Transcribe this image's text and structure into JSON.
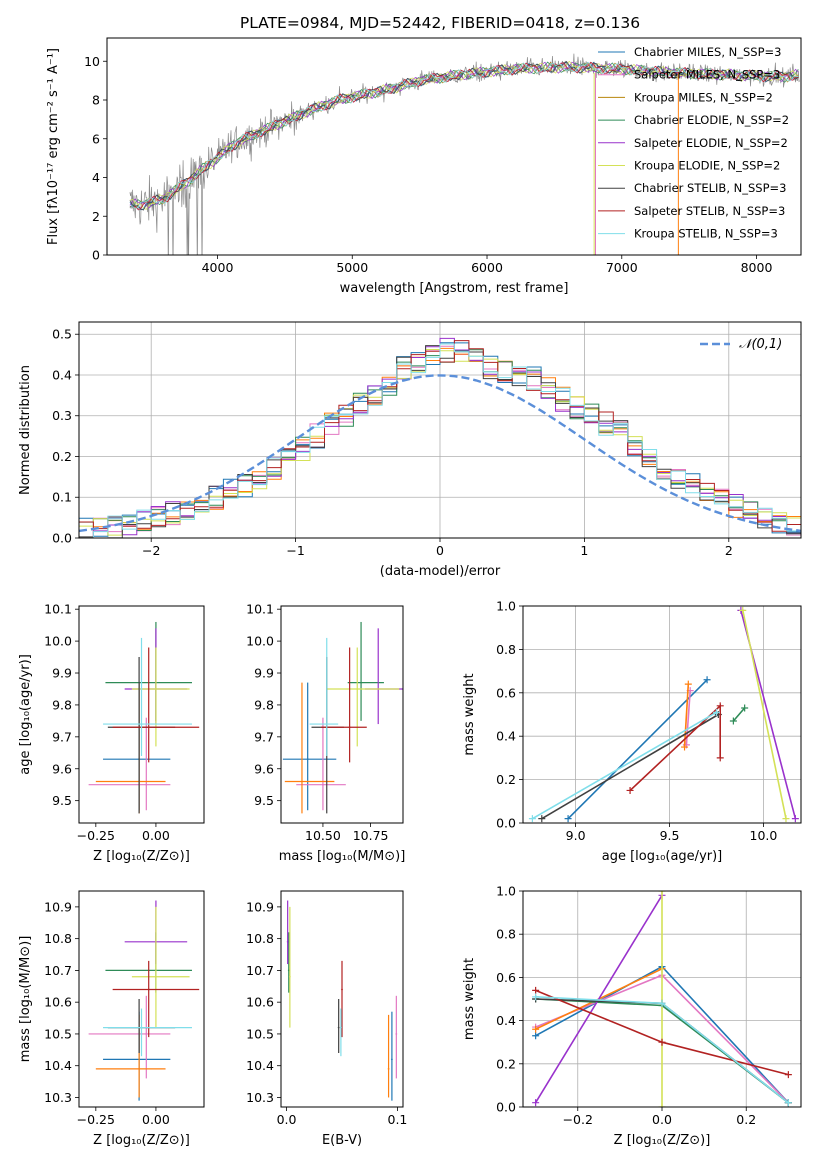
{
  "figure": {
    "title": "PLATE=0984, MJD=52442, FIBERID=0418, z=0.136"
  },
  "chart_data": [
    {
      "id": "spectrum",
      "type": "line",
      "xlabel": "wavelength [Angstrom, rest frame]",
      "ylabel": "Flux [fλ10⁻¹⁷ erg cm⁻² s⁻¹ A⁻¹]",
      "xlim": [
        3180,
        8330
      ],
      "ylim": [
        0,
        11.2
      ],
      "xticks": [
        4000,
        5000,
        6000,
        7000,
        8000
      ],
      "yticks": [
        0,
        2,
        4,
        6,
        8,
        10
      ],
      "grid": false,
      "legend_position": "top-right",
      "legend": [
        {
          "label": "Chabrier MILES, N_SSP=3",
          "color": "#1f77b4"
        },
        {
          "label": "Salpeter MILES, N_SSP=3",
          "color": "#e377c2"
        },
        {
          "label": "Kroupa MILES, N_SSP=2",
          "color": "#b8860b"
        },
        {
          "label": "Chabrier ELODIE, N_SSP=2",
          "color": "#2e8b57"
        },
        {
          "label": "Salpeter ELODIE, N_SSP=2",
          "color": "#9932cc"
        },
        {
          "label": "Kroupa ELODIE, N_SSP=2",
          "color": "#d4e157"
        },
        {
          "label": "Chabrier STELIB, N_SSP=3",
          "color": "#404040"
        },
        {
          "label": "Salpeter STELIB, N_SSP=3",
          "color": "#b22222"
        },
        {
          "label": "Kroupa STELIB, N_SSP=3",
          "color": "#80deea"
        }
      ],
      "continuum": {
        "x": [
          3350,
          3450,
          3600,
          3700,
          3800,
          3900,
          4000,
          4100,
          4200,
          4300,
          4500,
          4700,
          4900,
          5100,
          5300,
          5500,
          5800,
          6200,
          6600,
          7000,
          7400,
          7800,
          8200,
          8300
        ],
        "y": [
          2.6,
          2.6,
          2.9,
          3.4,
          3.9,
          4.5,
          5.0,
          5.6,
          6.0,
          6.3,
          6.9,
          7.5,
          8.0,
          8.3,
          8.6,
          9.0,
          9.3,
          9.6,
          9.7,
          9.6,
          9.4,
          9.3,
          9.2,
          9.3
        ]
      }
    },
    {
      "id": "residuals",
      "type": "line",
      "xlabel": "(data-model)/error",
      "ylabel": "Normed distribution",
      "xlim": [
        -2.5,
        2.5
      ],
      "ylim": [
        0,
        0.53
      ],
      "xticks": [
        -2,
        -1,
        0,
        1,
        2
      ],
      "yticks": [
        0.0,
        0.1,
        0.2,
        0.3,
        0.4,
        0.5
      ],
      "grid": true,
      "legend_position": "top-right",
      "reference_curve": {
        "label": "𝒩(0,1)",
        "color": "#5b8fd9"
      },
      "histogram_bin_width": 0.1,
      "histogram_envelope": [
        0.02,
        0.025,
        0.03,
        0.035,
        0.04,
        0.05,
        0.06,
        0.065,
        0.08,
        0.1,
        0.12,
        0.13,
        0.15,
        0.17,
        0.2,
        0.22,
        0.25,
        0.28,
        0.3,
        0.33,
        0.35,
        0.38,
        0.42,
        0.43,
        0.45,
        0.46,
        0.46,
        0.45,
        0.42,
        0.41,
        0.4,
        0.39,
        0.37,
        0.34,
        0.32,
        0.3,
        0.28,
        0.26,
        0.23,
        0.2,
        0.17,
        0.15,
        0.13,
        0.11,
        0.09,
        0.08,
        0.06,
        0.05,
        0.04,
        0.03
      ]
    },
    {
      "id": "age-vs-Z",
      "type": "scatter",
      "xlabel": "Z [log₁₀(Z/Z⊙)]",
      "ylabel": "age  [log₁₀(age/yr)]",
      "xlim": [
        -0.32,
        0.2
      ],
      "ylim": [
        9.43,
        10.11
      ],
      "xticks": [
        -0.25,
        0.0
      ],
      "yticks": [
        9.5,
        9.6,
        9.7,
        9.8,
        9.9,
        10.0,
        10.1
      ]
    },
    {
      "id": "age-vs-mass",
      "type": "scatter",
      "xlabel": "mass [log₁₀(M/M⊙)]",
      "xlim": [
        10.28,
        10.92
      ],
      "ylim": [
        9.43,
        10.11
      ],
      "xticks": [
        10.5,
        10.75
      ],
      "yticks": [
        9.5,
        9.6,
        9.7,
        9.8,
        9.9,
        10.0,
        10.1
      ]
    },
    {
      "id": "weight-vs-age",
      "type": "line",
      "xlabel": "age  [log₁₀(age/yr)]",
      "ylabel": "mass weight",
      "xlim": [
        8.72,
        10.2
      ],
      "ylim": [
        0,
        1
      ],
      "xticks": [
        9.0,
        9.5,
        10.0
      ],
      "yticks": [
        0.0,
        0.2,
        0.4,
        0.6,
        0.8,
        1.0
      ],
      "grid": true,
      "series": [
        {
          "color": "#1f77b4",
          "x": [
            8.96,
            9.7
          ],
          "y": [
            0.02,
            0.66
          ]
        },
        {
          "color": "#e377c2",
          "x": [
            9.59,
            9.61
          ],
          "y": [
            0.36,
            0.61
          ]
        },
        {
          "color": "#ff7f0e",
          "x": [
            9.58,
            9.6
          ],
          "y": [
            0.35,
            0.64
          ]
        },
        {
          "color": "#2e8b57",
          "x": [
            9.84,
            9.9
          ],
          "y": [
            0.47,
            0.53
          ]
        },
        {
          "color": "#9932cc",
          "x": [
            9.88,
            10.17
          ],
          "y": [
            0.98,
            0.02
          ]
        },
        {
          "color": "#d4e157",
          "x": [
            9.89,
            10.12
          ],
          "y": [
            0.98,
            0.02
          ]
        },
        {
          "color": "#404040",
          "x": [
            8.82,
            9.76
          ],
          "y": [
            0.02,
            0.5
          ]
        },
        {
          "color": "#b22222",
          "x": [
            9.29,
            9.77,
            9.77
          ],
          "y": [
            0.15,
            0.54,
            0.3
          ]
        },
        {
          "color": "#80deea",
          "x": [
            8.77,
            9.75
          ],
          "y": [
            0.02,
            0.51
          ]
        }
      ]
    },
    {
      "id": "mass-vs-Z",
      "type": "scatter",
      "xlabel": "Z [log₁₀(Z/Z⊙)]",
      "ylabel": "mass [log₁₀(M/M⊙)]",
      "xlim": [
        -0.32,
        0.2
      ],
      "ylim": [
        10.27,
        10.95
      ],
      "xticks": [
        -0.25,
        0.0
      ],
      "yticks": [
        10.3,
        10.4,
        10.5,
        10.6,
        10.7,
        10.8,
        10.9
      ]
    },
    {
      "id": "mass-vs-EBV",
      "type": "scatter",
      "xlabel": "E(B-V)",
      "xlim": [
        -0.005,
        0.105
      ],
      "ylim": [
        10.27,
        10.95
      ],
      "xticks": [
        0.0,
        0.1
      ],
      "yticks": [
        10.3,
        10.4,
        10.5,
        10.6,
        10.7,
        10.8,
        10.9
      ]
    },
    {
      "id": "weight-vs-Z",
      "type": "line",
      "xlabel": "Z [log₁₀(Z/Z⊙)]",
      "ylabel": "mass weight",
      "xlim": [
        -0.33,
        0.33
      ],
      "ylim": [
        0,
        1
      ],
      "xticks": [
        -0.2,
        0.0,
        0.2
      ],
      "yticks": [
        0.0,
        0.2,
        0.4,
        0.6,
        0.8,
        1.0
      ],
      "grid": true,
      "series": [
        {
          "color": "#1f77b4",
          "x": [
            -0.3,
            0.0,
            0.3
          ],
          "y": [
            0.33,
            0.65,
            0.02
          ]
        },
        {
          "color": "#e377c2",
          "x": [
            -0.3,
            0.0,
            0.3
          ],
          "y": [
            0.37,
            0.61,
            0.02
          ]
        },
        {
          "color": "#ff7f0e",
          "x": [
            -0.3,
            0.0
          ],
          "y": [
            0.36,
            0.64
          ]
        },
        {
          "color": "#2e8b57",
          "x": [
            -0.3,
            0.0,
            0.3
          ],
          "y": [
            0.5,
            0.47,
            0.02
          ]
        },
        {
          "color": "#9932cc",
          "x": [
            -0.3,
            0.0
          ],
          "y": [
            0.02,
            0.98
          ]
        },
        {
          "color": "#d4e157",
          "x": [
            0.0,
            0.0
          ],
          "y": [
            0.0,
            1.0
          ]
        },
        {
          "color": "#404040",
          "x": [
            -0.3,
            0.0,
            0.3
          ],
          "y": [
            0.5,
            0.48,
            0.02
          ]
        },
        {
          "color": "#b22222",
          "x": [
            -0.3,
            0.0,
            0.3
          ],
          "y": [
            0.54,
            0.3,
            0.15
          ]
        },
        {
          "color": "#80deea",
          "x": [
            -0.3,
            0.0,
            0.3
          ],
          "y": [
            0.51,
            0.48,
            0.02
          ]
        }
      ]
    }
  ],
  "fit_results": [
    {
      "color": "#1f77b4",
      "Z": -0.07,
      "Z_lo": -0.22,
      "Z_hi": 0.06,
      "age": 9.63,
      "age_lo": 9.47,
      "age_hi": 9.87,
      "mass": 10.42,
      "mass_lo": 10.29,
      "mass_hi": 10.57,
      "ebv": 0.095
    },
    {
      "color": "#e377c2",
      "Z": -0.04,
      "Z_lo": -0.28,
      "Z_hi": 0.06,
      "age": 9.55,
      "age_lo": 9.47,
      "age_hi": 9.76,
      "mass": 10.5,
      "mass_lo": 10.36,
      "mass_hi": 10.62,
      "ebv": 0.099
    },
    {
      "color": "#ff7f0e",
      "Z": -0.07,
      "Z_lo": -0.25,
      "Z_hi": 0.04,
      "age": 9.56,
      "age_lo": 9.46,
      "age_hi": 9.87,
      "mass": 10.39,
      "mass_lo": 10.3,
      "mass_hi": 10.56,
      "ebv": 0.092
    },
    {
      "color": "#2e8b57",
      "Z": 0.0,
      "Z_lo": -0.21,
      "Z_hi": 0.15,
      "age": 9.87,
      "age_lo": 9.75,
      "age_hi": 10.06,
      "mass": 10.7,
      "mass_lo": 10.63,
      "mass_hi": 10.82,
      "ebv": 0.002
    },
    {
      "color": "#9932cc",
      "Z": 0.0,
      "Z_lo": -0.13,
      "Z_hi": 0.13,
      "age": 9.85,
      "age_lo": 9.74,
      "age_hi": 10.04,
      "mass": 10.79,
      "mass_lo": 10.72,
      "mass_hi": 10.92,
      "ebv": 0.001
    },
    {
      "color": "#d4e157",
      "Z": 0.0,
      "Z_lo": -0.1,
      "Z_hi": 0.14,
      "age": 9.85,
      "age_lo": 9.67,
      "age_hi": 9.98,
      "mass": 10.68,
      "mass_lo": 10.52,
      "mass_hi": 10.9,
      "ebv": 0.003
    },
    {
      "color": "#404040",
      "Z": -0.07,
      "Z_lo": -0.2,
      "Z_hi": 0.08,
      "age": 9.73,
      "age_lo": 9.46,
      "age_hi": 9.95,
      "mass": 10.52,
      "mass_lo": 10.44,
      "mass_hi": 10.61,
      "ebv": 0.047
    },
    {
      "color": "#b22222",
      "Z": -0.03,
      "Z_lo": -0.18,
      "Z_hi": 0.18,
      "age": 9.73,
      "age_lo": 9.62,
      "age_hi": 9.98,
      "mass": 10.64,
      "mass_lo": 10.49,
      "mass_hi": 10.73,
      "ebv": 0.05
    },
    {
      "color": "#80deea",
      "Z": -0.06,
      "Z_lo": -0.22,
      "Z_hi": 0.15,
      "age": 9.74,
      "age_lo": 9.64,
      "age_hi": 10.01,
      "mass": 10.52,
      "mass_lo": 10.43,
      "mass_hi": 10.58,
      "ebv": 0.049
    }
  ]
}
